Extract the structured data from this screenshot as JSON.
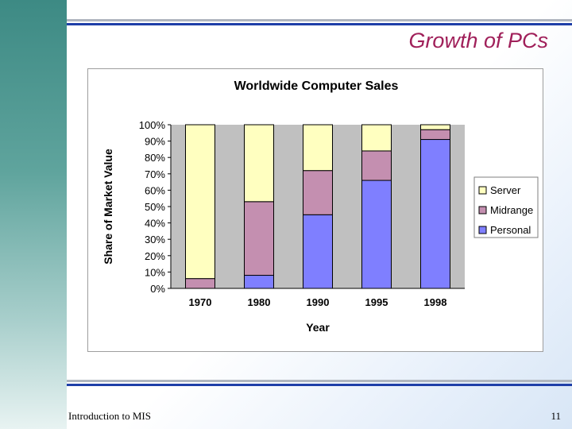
{
  "slide": {
    "title": "Growth of PCs",
    "footer_left": "Introduction to MIS",
    "page_number": "11"
  },
  "colors": {
    "server": "#ffffc0",
    "midrange": "#c48fb0",
    "personal": "#7f7fff",
    "plot_bg": "#c0c0c0",
    "title": "#a0205a"
  },
  "chart_data": {
    "type": "bar",
    "stacked": true,
    "title": "Worldwide Computer Sales",
    "xlabel": "Year",
    "ylabel": "Share of Market Value",
    "categories": [
      "1970",
      "1980",
      "1990",
      "1995",
      "1998"
    ],
    "series": [
      {
        "name": "Personal",
        "values": [
          0,
          8,
          45,
          66,
          91
        ]
      },
      {
        "name": "Midrange",
        "values": [
          6,
          45,
          27,
          18,
          6
        ]
      },
      {
        "name": "Server",
        "values": [
          94,
          47,
          28,
          16,
          3
        ]
      }
    ],
    "ylim": [
      0,
      100
    ],
    "yticks": [
      "0%",
      "10%",
      "20%",
      "30%",
      "40%",
      "50%",
      "60%",
      "70%",
      "80%",
      "90%",
      "100%"
    ],
    "legend_order": [
      "Server",
      "Midrange",
      "Personal"
    ],
    "legend_position": "right",
    "grid": false
  }
}
